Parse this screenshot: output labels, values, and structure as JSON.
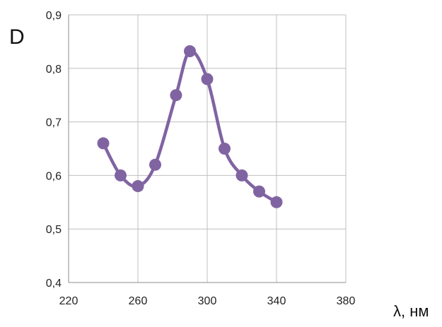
{
  "chart_data": {
    "type": "line",
    "title": "",
    "xlabel": "λ, нм",
    "ylabel": "D",
    "xlim": [
      220,
      380
    ],
    "ylim": [
      0.4,
      0.9
    ],
    "x_ticks": [
      220,
      260,
      300,
      340,
      380
    ],
    "y_ticks": [
      0.4,
      0.5,
      0.6,
      0.7,
      0.8,
      0.9
    ],
    "x_tick_labels": [
      "220",
      "260",
      "300",
      "340",
      "380"
    ],
    "y_tick_labels": [
      "0,4",
      "0,5",
      "0,6",
      "0,7",
      "0,8",
      "0,9"
    ],
    "grid": true,
    "legend": "none",
    "series": [
      {
        "x": [
          240,
          250,
          260,
          270,
          282,
          290,
          300,
          310,
          320,
          330,
          340
        ],
        "values": [
          0.66,
          0.6,
          0.58,
          0.62,
          0.75,
          0.832,
          0.78,
          0.65,
          0.6,
          0.57,
          0.55
        ],
        "color": "#8064a2",
        "marker": "circle",
        "smooth": true
      }
    ]
  }
}
